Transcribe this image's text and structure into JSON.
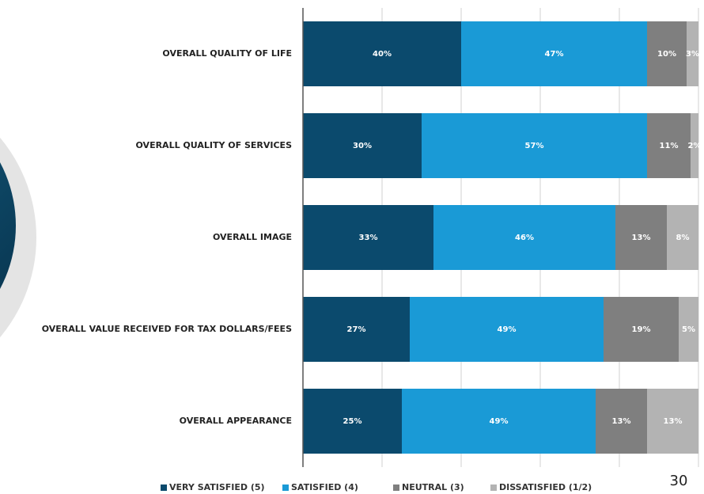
{
  "chart_data": {
    "type": "stacked_barh",
    "categories": [
      "OVERALL QUALITY OF LIFE",
      "OVERALL QUALITY OF SERVICES",
      "OVERALL IMAGE",
      "OVERALL VALUE RECEIVED FOR TAX DOLLARS/FEES",
      "OVERALL APPEARANCE"
    ],
    "series": [
      {
        "name": "VERY SATISFIED (5)",
        "color": "#0b4a6d",
        "values": [
          40,
          30,
          33,
          27,
          25
        ],
        "value_labels": [
          "40%",
          "30%",
          "33%",
          "27%",
          "25%"
        ]
      },
      {
        "name": "SATISFIED (4)",
        "color": "#1a9ad6",
        "values": [
          47,
          57,
          46,
          49,
          49
        ],
        "value_labels": [
          "47%",
          "57%",
          "46%",
          "49%",
          "49%"
        ]
      },
      {
        "name": "NEUTRAL (3)",
        "color": "#7f7f7f",
        "values": [
          10,
          11,
          13,
          19,
          13
        ],
        "value_labels": [
          "10%",
          "11%",
          "13%",
          "19%",
          "13%"
        ]
      },
      {
        "name": "DISSATISFIED (1/2)",
        "color": "#b3b3b3",
        "values": [
          3,
          2,
          8,
          5,
          13
        ],
        "value_labels": [
          "3%",
          "2%",
          "8%",
          "5%",
          "13%"
        ]
      }
    ],
    "xlim": [
      0,
      100
    ],
    "xticks": [
      0,
      20,
      40,
      60,
      80,
      100
    ],
    "grid": true,
    "legend": "bottom"
  },
  "page_number": "30"
}
